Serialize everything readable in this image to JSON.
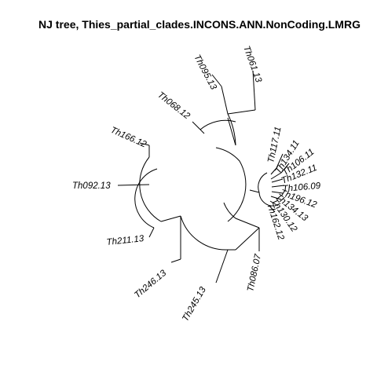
{
  "title": "NJ tree,  Thies_partial_clades.INCONS.ANN.NonCoding.LMRG",
  "tree": {
    "method": "NJ",
    "layout": "fan",
    "tips": [
      {
        "id": "t061",
        "label": "Th061.13"
      },
      {
        "id": "t095",
        "label": "Th095.13"
      },
      {
        "id": "t068",
        "label": "Th068.12"
      },
      {
        "id": "t166",
        "label": "Th166.12"
      },
      {
        "id": "t092",
        "label": "Th092.13"
      },
      {
        "id": "t211",
        "label": "Th211.13"
      },
      {
        "id": "t246",
        "label": "Th246.13"
      },
      {
        "id": "t245",
        "label": "Th245.13"
      },
      {
        "id": "t086",
        "label": "Th086.07"
      },
      {
        "id": "t117",
        "label": "Th117.11"
      },
      {
        "id": "t134",
        "label": "Th134.11"
      },
      {
        "id": "t106a",
        "label": "Th106.11"
      },
      {
        "id": "t132",
        "label": "Th132.11"
      },
      {
        "id": "t106b",
        "label": "Th106.09"
      },
      {
        "id": "t196",
        "label": "Th196.12"
      },
      {
        "id": "t134b",
        "label": "Th134.13"
      },
      {
        "id": "t130",
        "label": "Th130.12"
      },
      {
        "id": "t162",
        "label": "Th162.12"
      }
    ]
  }
}
